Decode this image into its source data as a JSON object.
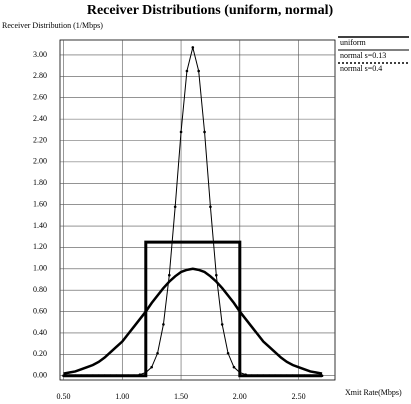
{
  "chart_data": {
    "type": "line",
    "title": "Receiver Distributions (uniform, normal)",
    "y_label": "Receiver Distribution (1/Mbps)",
    "x_label": "Xmit Rate(Mbps)",
    "xlim": [
      0.47,
      2.81
    ],
    "ylim": [
      -0.04,
      3.14
    ],
    "xticks": [
      {
        "value": 0.5,
        "label": "0.50"
      },
      {
        "value": 1.0,
        "label": "1.00"
      },
      {
        "value": 1.5,
        "label": "1.50"
      },
      {
        "value": 2.0,
        "label": "2.00"
      },
      {
        "value": 2.5,
        "label": "2.50"
      }
    ],
    "yticks": [
      {
        "value": 0,
        "label": "0.00"
      },
      {
        "value": 0.2,
        "label": "0.20"
      },
      {
        "value": 0.4,
        "label": "0.40"
      },
      {
        "value": 0.6,
        "label": "0.60"
      },
      {
        "value": 0.8,
        "label": "0.80"
      },
      {
        "value": 1.0,
        "label": "1.00"
      },
      {
        "value": 1.2,
        "label": "1.20"
      },
      {
        "value": 1.4,
        "label": "1.40"
      },
      {
        "value": 1.6,
        "label": "1.60"
      },
      {
        "value": 1.8,
        "label": "1.80"
      },
      {
        "value": 2.0,
        "label": "2.00"
      },
      {
        "value": 2.2,
        "label": "2.20"
      },
      {
        "value": 2.4,
        "label": "2.40"
      },
      {
        "value": 2.6,
        "label": "2.60"
      },
      {
        "value": 2.8,
        "label": "2.80"
      },
      {
        "value": 3.0,
        "label": "3.00"
      }
    ],
    "grid": true,
    "legend": "top-right",
    "series": [
      {
        "name": "uniform",
        "color": "#000000",
        "width": 3,
        "markers": false,
        "x": [
          0.5,
          1.2,
          1.2,
          2.0,
          2.0,
          2.7
        ],
        "values": [
          0,
          0,
          1.25,
          1.25,
          0,
          0
        ]
      },
      {
        "name": "normal s=0.13",
        "color": "#000000",
        "width": 1,
        "markers": true,
        "x": [
          0.5,
          0.55,
          0.6,
          0.65,
          0.7,
          0.75,
          0.8,
          0.85,
          0.9,
          0.95,
          1.0,
          1.05,
          1.1,
          1.15,
          1.2,
          1.25,
          1.3,
          1.35,
          1.4,
          1.45,
          1.5,
          1.55,
          1.6,
          1.65,
          1.7,
          1.75,
          1.8,
          1.85,
          1.9,
          1.95,
          2.0,
          2.05,
          2.1,
          2.15,
          2.2,
          2.25,
          2.3,
          2.35,
          2.4,
          2.45,
          2.5,
          2.55,
          2.6,
          2.65,
          2.7
        ],
        "values": [
          0,
          0,
          0,
          0,
          0,
          0,
          0,
          0,
          0,
          0,
          0,
          0,
          0,
          0.01,
          0.03,
          0.08,
          0.21,
          0.48,
          0.94,
          1.58,
          2.28,
          2.85,
          3.07,
          2.85,
          2.28,
          1.58,
          0.94,
          0.48,
          0.21,
          0.08,
          0.03,
          0.01,
          0,
          0,
          0,
          0,
          0,
          0,
          0,
          0,
          0,
          0,
          0,
          0,
          0
        ]
      },
      {
        "name": "normal s=0.4",
        "color": "#000000",
        "width": 2.5,
        "markers": false,
        "x": [
          0.5,
          0.55,
          0.6,
          0.65,
          0.7,
          0.75,
          0.8,
          0.85,
          0.9,
          0.95,
          1.0,
          1.05,
          1.1,
          1.15,
          1.2,
          1.25,
          1.3,
          1.35,
          1.4,
          1.45,
          1.5,
          1.55,
          1.6,
          1.65,
          1.7,
          1.75,
          1.8,
          1.85,
          1.9,
          1.95,
          2.0,
          2.05,
          2.1,
          2.15,
          2.2,
          2.25,
          2.3,
          2.35,
          2.4,
          2.45,
          2.5,
          2.55,
          2.6,
          2.65,
          2.7
        ],
        "values": [
          0.02,
          0.03,
          0.04,
          0.06,
          0.08,
          0.1,
          0.13,
          0.17,
          0.22,
          0.27,
          0.32,
          0.39,
          0.46,
          0.53,
          0.6,
          0.68,
          0.75,
          0.82,
          0.88,
          0.93,
          0.97,
          0.99,
          1.0,
          0.99,
          0.97,
          0.93,
          0.88,
          0.82,
          0.75,
          0.68,
          0.6,
          0.53,
          0.46,
          0.39,
          0.32,
          0.27,
          0.22,
          0.17,
          0.13,
          0.1,
          0.08,
          0.06,
          0.04,
          0.03,
          0.02
        ]
      }
    ]
  }
}
